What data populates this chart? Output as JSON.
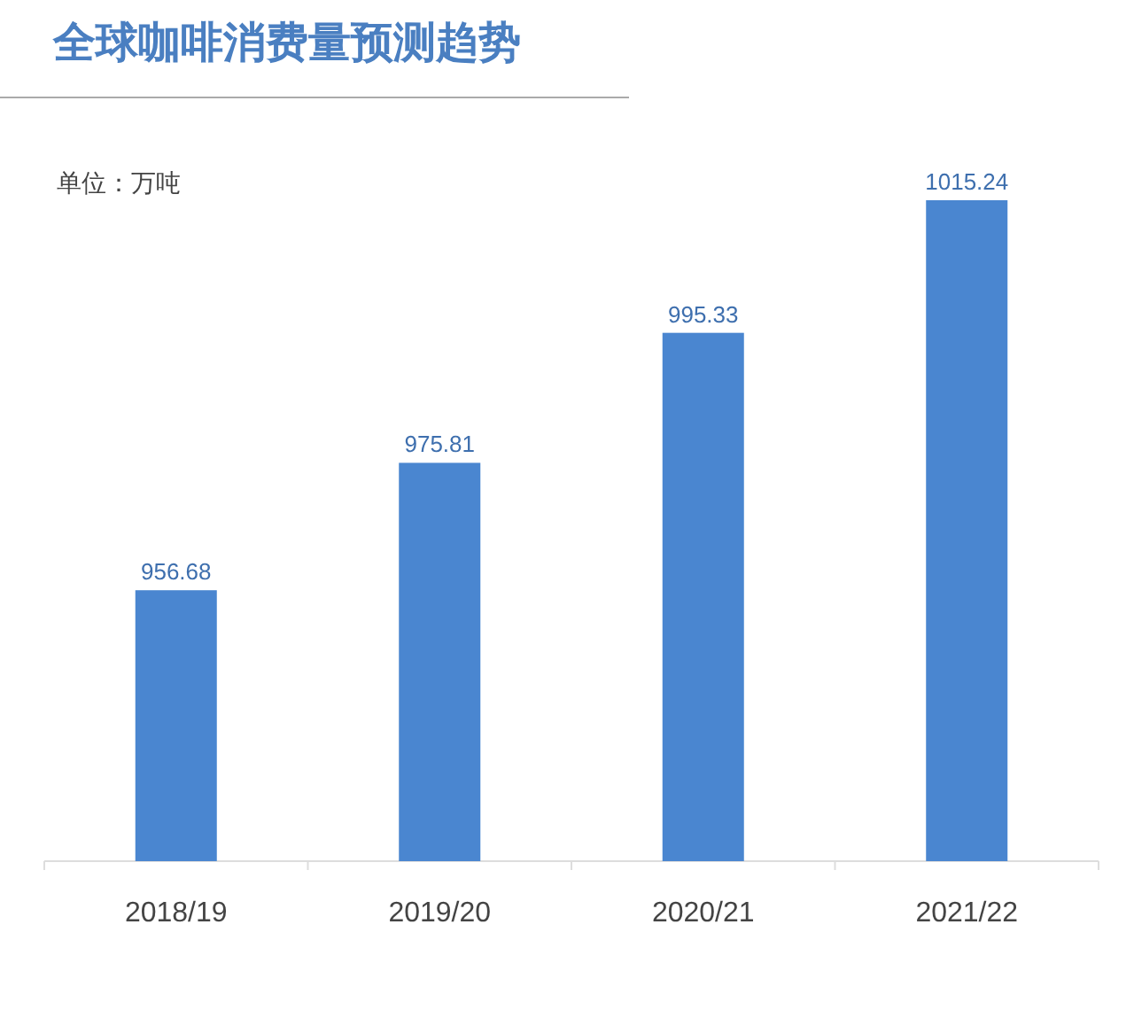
{
  "chart_data": {
    "type": "bar",
    "title": "全球咖啡消费量预测趋势",
    "annotations": [
      "单位：万吨"
    ],
    "categories": [
      "2018/19",
      "2019/20",
      "2020/21",
      "2021/22"
    ],
    "values": [
      956.68,
      975.81,
      995.33,
      1015.24
    ],
    "color": "#4a86d0",
    "ylim": [
      916,
      1015.24
    ],
    "data_labels": true
  }
}
